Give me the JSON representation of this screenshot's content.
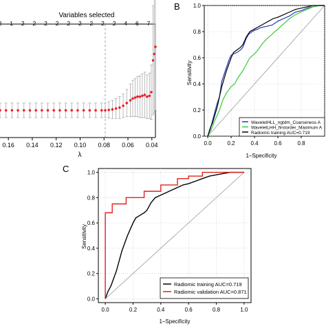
{
  "chart_data": [
    {
      "panel": "",
      "type": "scatter",
      "title": "Variables selected",
      "top_tick_labels": [
        "2",
        "1",
        "2",
        "2",
        "2",
        "2",
        "2",
        "2",
        "2",
        "2",
        "2",
        "4",
        "6",
        "7"
      ],
      "xlabel": "λ",
      "x_tick_labels": [
        "0.16",
        "0.14",
        "0.12",
        "0.10",
        "0.08",
        "0.06",
        "0.04"
      ],
      "xlim": [
        0.167,
        0.037
      ],
      "vline": 0.079,
      "points_x": [
        0.167,
        0.162,
        0.157,
        0.152,
        0.147,
        0.142,
        0.137,
        0.132,
        0.127,
        0.122,
        0.117,
        0.112,
        0.107,
        0.102,
        0.097,
        0.092,
        0.087,
        0.082,
        0.079,
        0.076,
        0.073,
        0.07,
        0.067,
        0.064,
        0.061,
        0.058,
        0.056,
        0.054,
        0.052,
        0.05,
        0.048,
        0.046,
        0.044,
        0.042,
        0.0405,
        0.039,
        0.038,
        0.037
      ],
      "points_y": [
        0.0,
        0.0,
        0.0,
        0.0,
        0.0,
        0.0,
        0.0,
        0.0,
        0.0,
        0.0,
        0.0,
        0.0,
        0.0,
        0.0,
        0.0,
        0.0,
        0.0,
        0.0,
        0.0,
        0.005,
        0.01,
        0.02,
        0.03,
        0.05,
        0.08,
        0.11,
        0.13,
        0.14,
        0.15,
        0.15,
        0.16,
        0.17,
        0.15,
        0.16,
        0.2,
        0.55,
        0.62,
        0.7
      ],
      "err_y": [
        0.08,
        0.08,
        0.08,
        0.08,
        0.08,
        0.08,
        0.08,
        0.08,
        0.08,
        0.08,
        0.08,
        0.08,
        0.08,
        0.08,
        0.08,
        0.08,
        0.08,
        0.08,
        0.08,
        0.09,
        0.1,
        0.11,
        0.12,
        0.13,
        0.15,
        0.18,
        0.2,
        0.21,
        0.22,
        0.23,
        0.24,
        0.25,
        0.24,
        0.25,
        0.3,
        0.6,
        0.65,
        0.7
      ],
      "ylim": [
        -0.3,
        0.95
      ],
      "point_color": "#e8202a"
    },
    {
      "panel": "B",
      "type": "line",
      "xlabel": "1–Specificity",
      "ylabel": "Sensitivity",
      "x_tick_labels": [
        "0.0",
        "0.2",
        "0.4",
        "0.6",
        "0.8"
      ],
      "y_tick_labels": [
        "0.0",
        "0.2",
        "0.4",
        "0.6",
        "0.8",
        "1.0"
      ],
      "xlim": [
        -0.03,
        1.0
      ],
      "ylim": [
        0.0,
        1.0
      ],
      "series": [
        {
          "name": "WaveletHLL_ngtdm_Coarseness A",
          "color": "#2233bb",
          "x": [
            0,
            0.02,
            0.05,
            0.08,
            0.1,
            0.12,
            0.15,
            0.18,
            0.2,
            0.22,
            0.25,
            0.28,
            0.3,
            0.33,
            0.35,
            0.38,
            0.4,
            0.43,
            0.45,
            0.5,
            0.55,
            0.6,
            0.65,
            0.7,
            0.75,
            0.8,
            0.85,
            0.9,
            0.95,
            1.0
          ],
          "y": [
            0,
            0.05,
            0.15,
            0.25,
            0.3,
            0.42,
            0.5,
            0.58,
            0.62,
            0.63,
            0.64,
            0.66,
            0.68,
            0.75,
            0.78,
            0.8,
            0.81,
            0.82,
            0.83,
            0.84,
            0.85,
            0.88,
            0.9,
            0.92,
            0.95,
            0.96,
            0.98,
            0.99,
            1.0,
            1.0
          ]
        },
        {
          "name": "WaveletLHH_firstorder_Maximum A",
          "color": "#33cc33",
          "x": [
            0,
            0.03,
            0.06,
            0.1,
            0.13,
            0.16,
            0.2,
            0.23,
            0.26,
            0.3,
            0.33,
            0.36,
            0.4,
            0.43,
            0.46,
            0.5,
            0.55,
            0.6,
            0.65,
            0.7,
            0.75,
            0.8,
            0.85,
            0.9,
            0.95,
            1.0
          ],
          "y": [
            0,
            0.05,
            0.12,
            0.2,
            0.28,
            0.33,
            0.38,
            0.4,
            0.45,
            0.5,
            0.55,
            0.6,
            0.63,
            0.66,
            0.7,
            0.74,
            0.78,
            0.82,
            0.86,
            0.9,
            0.93,
            0.95,
            0.97,
            0.99,
            1.0,
            1.0
          ]
        },
        {
          "name": "Radiomic training AUC=0.719",
          "color": "#000000",
          "x": [
            0,
            0.02,
            0.04,
            0.06,
            0.08,
            0.1,
            0.12,
            0.14,
            0.16,
            0.18,
            0.2,
            0.22,
            0.25,
            0.28,
            0.3,
            0.33,
            0.36,
            0.4,
            0.44,
            0.48,
            0.52,
            0.56,
            0.6,
            0.65,
            0.7,
            0.75,
            0.8,
            0.85,
            0.9,
            1.0
          ],
          "y": [
            0,
            0.06,
            0.1,
            0.16,
            0.22,
            0.3,
            0.38,
            0.44,
            0.5,
            0.55,
            0.6,
            0.64,
            0.66,
            0.68,
            0.7,
            0.76,
            0.8,
            0.82,
            0.84,
            0.86,
            0.88,
            0.9,
            0.91,
            0.93,
            0.95,
            0.97,
            0.98,
            0.99,
            1.0,
            1.0
          ]
        }
      ]
    },
    {
      "panel": "C",
      "type": "line",
      "xlabel": "1–Specificity",
      "ylabel": "Sensitivity",
      "x_tick_labels": [
        "0.0",
        "0.2",
        "0.4",
        "0.6",
        "0.8",
        "1.0"
      ],
      "y_tick_labels": [
        "0.0",
        "0.2",
        "0.4",
        "0.6",
        "0.8",
        "1.0"
      ],
      "xlim": [
        -0.05,
        1.05
      ],
      "ylim": [
        -0.03,
        1.03
      ],
      "series": [
        {
          "name": "Radiomic training AUC=0.719",
          "color": "#000000",
          "x": [
            0,
            0.02,
            0.04,
            0.06,
            0.08,
            0.1,
            0.12,
            0.14,
            0.16,
            0.18,
            0.2,
            0.22,
            0.25,
            0.28,
            0.3,
            0.33,
            0.36,
            0.4,
            0.44,
            0.48,
            0.52,
            0.56,
            0.6,
            0.65,
            0.7,
            0.75,
            0.8,
            0.85,
            0.9,
            1.0
          ],
          "y": [
            0,
            0.06,
            0.1,
            0.16,
            0.22,
            0.3,
            0.38,
            0.44,
            0.5,
            0.55,
            0.6,
            0.64,
            0.66,
            0.68,
            0.7,
            0.76,
            0.8,
            0.82,
            0.84,
            0.86,
            0.88,
            0.9,
            0.91,
            0.93,
            0.95,
            0.97,
            0.98,
            0.99,
            1.0,
            1.0
          ]
        },
        {
          "name": "Radiomic validation AUC=0.871",
          "color": "#e0201a",
          "x": [
            0,
            0,
            0.05,
            0.05,
            0.15,
            0.15,
            0.28,
            0.28,
            0.4,
            0.4,
            0.52,
            0.52,
            0.6,
            0.6,
            0.7,
            0.7,
            0.78,
            0.78,
            1.0
          ],
          "y": [
            0,
            0.68,
            0.68,
            0.75,
            0.75,
            0.8,
            0.8,
            0.85,
            0.85,
            0.9,
            0.9,
            0.95,
            0.95,
            0.97,
            0.97,
            1.0,
            1.0,
            1.0,
            1.0
          ]
        }
      ]
    }
  ]
}
